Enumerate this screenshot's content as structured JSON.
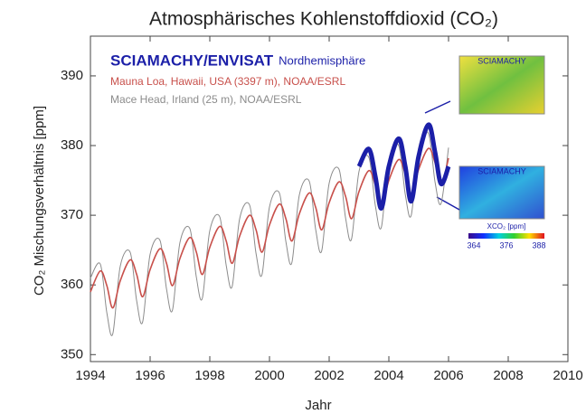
{
  "chart_data": {
    "type": "line",
    "title": "Atmosphärisches Kohlenstoffdioxid (CO₂)",
    "x_label": "Jahr",
    "y_label": "CO₂ Mischungsverhältnis [ppm]",
    "legend_note": "Nordhemisphäre",
    "xlim": [
      1994,
      2010
    ],
    "xticks": [
      1994,
      1996,
      1998,
      2000,
      2002,
      2004,
      2006,
      2008,
      2010
    ],
    "ylim": [
      349,
      395.7
    ],
    "yticks": [
      350,
      360,
      370,
      380,
      390
    ],
    "x": [
      1994,
      1994.33,
      1994.55,
      1994.75,
      1995,
      1995.33,
      1995.55,
      1995.75,
      1996,
      1996.33,
      1996.55,
      1996.75,
      1997,
      1997.33,
      1997.55,
      1997.75,
      1998,
      1998.33,
      1998.55,
      1998.75,
      1999,
      1999.33,
      1999.55,
      1999.75,
      2000,
      2000.33,
      2000.55,
      2000.75,
      2001,
      2001.33,
      2001.55,
      2001.75,
      2002,
      2002.33,
      2002.55,
      2002.75,
      2003,
      2003.33,
      2003.55,
      2003.75,
      2004,
      2004.33,
      2004.55,
      2004.75,
      2005,
      2005.33,
      2005.55,
      2005.75,
      2006
    ],
    "series": [
      {
        "name": "Mace Head, Irland (25 m), NOAA/ESRL",
        "color": "#8c8c8c",
        "width": 1,
        "values": [
          361.0,
          363.0,
          356.0,
          353.0,
          362.7,
          364.7,
          357.7,
          354.7,
          364.4,
          366.4,
          359.4,
          356.4,
          366.1,
          368.1,
          361.1,
          358.1,
          367.8,
          369.8,
          362.8,
          359.8,
          369.5,
          371.5,
          364.5,
          361.5,
          371.2,
          373.2,
          366.2,
          363.2,
          372.9,
          374.9,
          367.9,
          364.9,
          374.6,
          376.6,
          369.6,
          366.6,
          376.3,
          378.3,
          371.3,
          368.3,
          378.0,
          380.0,
          373.0,
          370.0,
          379.7,
          381.7,
          374.7,
          371.7,
          379.7
        ]
      },
      {
        "name": "Mauna Loa, Hawaii, USA (3397 m), NOAA/ESRL",
        "color": "#c8504b",
        "width": 1.6,
        "values": [
          359.0,
          362.0,
          359.9,
          356.7,
          360.6,
          363.6,
          361.5,
          358.3,
          362.2,
          365.2,
          363.1,
          359.9,
          363.8,
          366.8,
          364.7,
          361.5,
          365.4,
          368.4,
          366.3,
          363.1,
          367.0,
          370.0,
          367.9,
          364.7,
          368.6,
          371.6,
          369.5,
          366.3,
          370.2,
          373.2,
          371.1,
          367.9,
          371.8,
          374.8,
          372.7,
          369.5,
          373.4,
          376.4,
          374.3,
          371.1,
          375.0,
          378.0,
          375.9,
          372.7,
          376.6,
          379.6,
          377.5,
          374.3,
          378.2
        ]
      },
      {
        "name": "SCIAMACHY/ENVISAT",
        "color": "#1b1fa8",
        "width": 5,
        "values": [
          null,
          null,
          null,
          null,
          null,
          null,
          null,
          null,
          null,
          null,
          null,
          null,
          null,
          null,
          null,
          null,
          null,
          null,
          null,
          null,
          null,
          null,
          null,
          null,
          null,
          null,
          null,
          null,
          null,
          null,
          null,
          null,
          null,
          null,
          null,
          null,
          377.0,
          379.5,
          375.5,
          371.0,
          377.0,
          381.0,
          377.0,
          372.0,
          378.5,
          383.0,
          379.0,
          374.5,
          377.0
        ]
      }
    ],
    "insets": [
      {
        "label": "SCIAMACHY"
      },
      {
        "label": "SCIAMACHY"
      }
    ],
    "colorbar": {
      "label": "XCO₂ [ppm]",
      "ticks": [
        364,
        376,
        388
      ]
    }
  }
}
